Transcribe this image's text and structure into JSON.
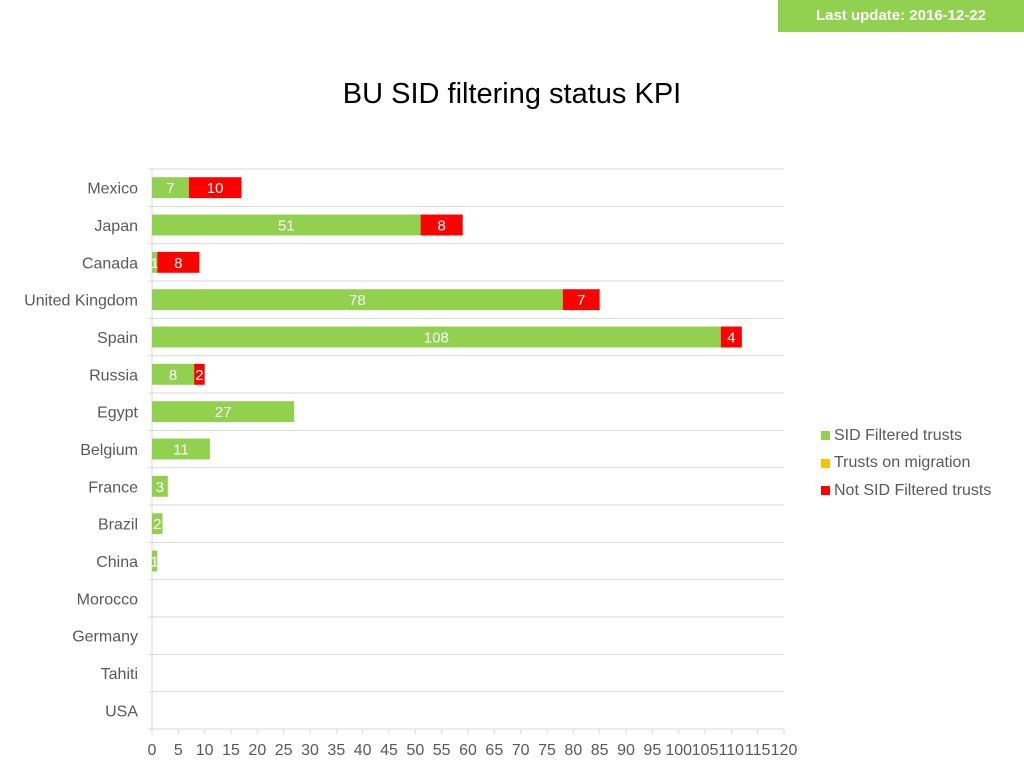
{
  "header": {
    "last_update": "Last update: 2016-12-22"
  },
  "colors": {
    "sid_filtered": "#92d050",
    "on_migration": "#ffc000",
    "not_filtered": "#ff0000",
    "badge": "#92d050",
    "grid": "#d9d9d9",
    "label": "#595959"
  },
  "chart_data": {
    "type": "bar",
    "orientation": "horizontal",
    "stacked": true,
    "title": "BU SID filtering status KPI",
    "categories": [
      "Mexico",
      "Japan",
      "Canada",
      "United Kingdom",
      "Spain",
      "Russia",
      "Egypt",
      "Belgium",
      "France",
      "Brazil",
      "China",
      "Morocco",
      "Germany",
      "Tahiti",
      "USA"
    ],
    "series": [
      {
        "name": "SID Filtered trusts",
        "color": "#92d050",
        "values": [
          7,
          51,
          1,
          78,
          108,
          8,
          27,
          11,
          3,
          2,
          1,
          0,
          0,
          0,
          0
        ]
      },
      {
        "name": "Trusts on migration",
        "color": "#ffc000",
        "values": [
          0,
          0,
          0,
          0,
          0,
          0,
          0,
          0,
          0,
          0,
          0,
          0,
          0,
          0,
          0
        ]
      },
      {
        "name": "Not SID Filtered trusts",
        "color": "#ff0000",
        "values": [
          10,
          8,
          8,
          7,
          4,
          2,
          0,
          0,
          0,
          0,
          0,
          0,
          0,
          0,
          0
        ]
      }
    ],
    "xlim": [
      0,
      120
    ],
    "xticks": [
      0,
      5,
      10,
      15,
      20,
      25,
      30,
      35,
      40,
      45,
      50,
      55,
      60,
      65,
      70,
      75,
      80,
      85,
      90,
      95,
      100,
      105,
      110,
      115,
      120
    ],
    "grid": true,
    "legend_position": "right",
    "data_labels": true
  }
}
